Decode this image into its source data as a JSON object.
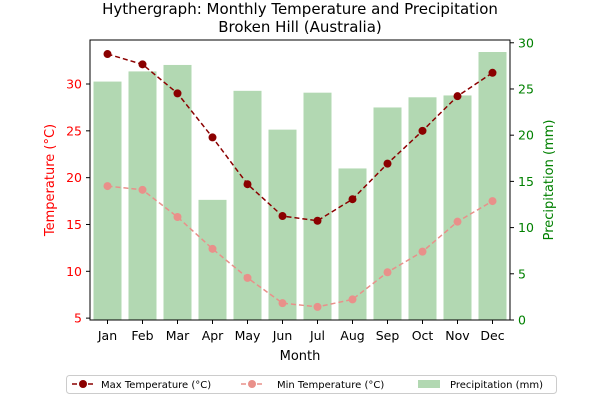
{
  "chart_data": {
    "type": "bar+line",
    "title": "Hythergraph: Monthly Temperature and Precipitation",
    "subtitle": "Broken Hill (Australia)",
    "xlabel": "Month",
    "ylabel_left": "Temperature (°C)",
    "ylabel_right": "Precipitation (mm)",
    "categories": [
      "Jan",
      "Feb",
      "Mar",
      "Apr",
      "May",
      "Jun",
      "Jul",
      "Aug",
      "Sep",
      "Oct",
      "Nov",
      "Dec"
    ],
    "ylim_left": [
      4.8,
      34.7
    ],
    "yticks_left": [
      5,
      10,
      15,
      20,
      25,
      30
    ],
    "ylim_right": [
      0,
      30.3
    ],
    "yticks_right": [
      0,
      5,
      10,
      15,
      20,
      25,
      30
    ],
    "series": [
      {
        "name": "Max Temperature (°C)",
        "kind": "line",
        "axis": "left",
        "color": "#8b0000",
        "style": "dashed",
        "values": [
          33.2,
          32.1,
          29.0,
          24.3,
          19.3,
          15.9,
          15.4,
          17.7,
          21.5,
          25.0,
          28.7,
          31.2
        ]
      },
      {
        "name": "Min Temperature (°C)",
        "kind": "line",
        "axis": "left",
        "color": "#e9908a",
        "style": "dashed",
        "values": [
          19.1,
          18.7,
          15.8,
          12.4,
          9.3,
          6.6,
          6.2,
          7.0,
          9.9,
          12.1,
          15.3,
          17.5
        ]
      },
      {
        "name": "Precipitation (mm)",
        "kind": "bar",
        "axis": "right",
        "color": "#b2d8b2",
        "values": [
          25.8,
          26.9,
          27.6,
          13.0,
          24.8,
          20.6,
          24.6,
          16.4,
          23.0,
          24.1,
          24.3,
          29.0
        ]
      }
    ],
    "legend_position": "bottom"
  },
  "colors": {
    "left_axis": "#ff0000",
    "right_axis": "#008000"
  }
}
